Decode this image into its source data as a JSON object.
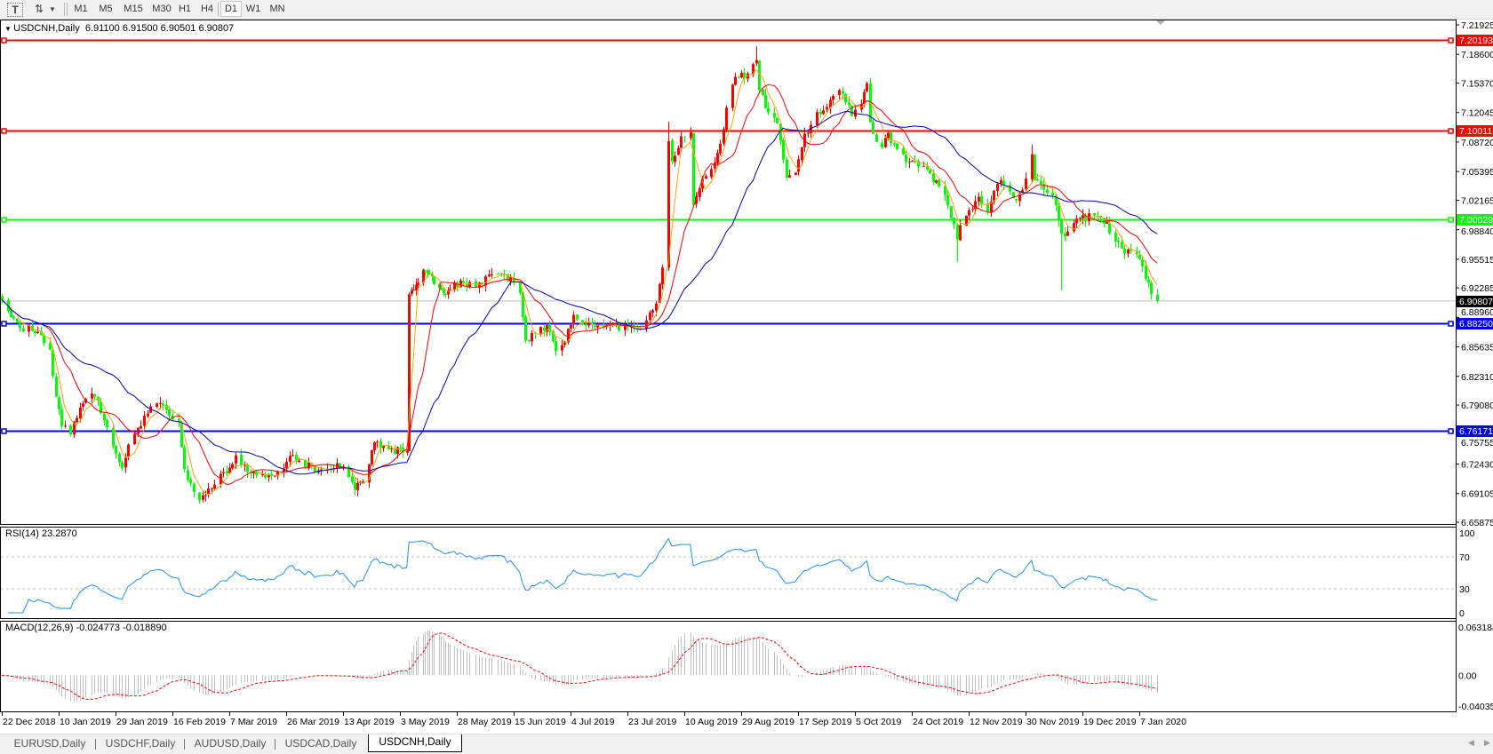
{
  "toolbar": {
    "text_tool_icon": "text-label-icon",
    "arrows_tool_icon": "arrows-icon",
    "timeframes": [
      "M1",
      "M5",
      "M15",
      "M30",
      "H1",
      "H4",
      "D1",
      "W1",
      "MN"
    ],
    "active_timeframe": "D1"
  },
  "header": {
    "symbol": "USDCNH,Daily",
    "ohlc": "6.91100 6.91500 6.90501 6.90807"
  },
  "price_axis": {
    "ticks": [
      "7.21925",
      "7.18600",
      "7.15370",
      "7.12045",
      "7.08720",
      "7.05395",
      "7.02165",
      "6.98840",
      "6.95515",
      "6.92285",
      "6.88960",
      "6.85635",
      "6.82310",
      "6.79080",
      "6.75755",
      "6.72430",
      "6.69105",
      "6.65875"
    ],
    "current_price": "6.90807"
  },
  "levels": [
    {
      "price": "7.20193",
      "color": "#ff0000"
    },
    {
      "price": "7.10011",
      "color": "#ff0000"
    },
    {
      "price": "7.00029",
      "color": "#00ff00"
    },
    {
      "price": "6.88250",
      "color": "#0000ff"
    },
    {
      "price": "6.76171",
      "color": "#0000ff"
    }
  ],
  "rsi": {
    "label": "RSI(14) 23.2870",
    "scale": [
      "100",
      "70",
      "30",
      "0"
    ],
    "color": "#1e90ff"
  },
  "macd": {
    "label": "MACD(12,26,9) -0.024773 -0.018890",
    "scale": [
      "0.063184",
      "0.00",
      "-0.040355"
    ],
    "histogram_color": "#c0c0c0",
    "signal_color": "#ff0000"
  },
  "date_axis": [
    "22 Dec 2018",
    "10 Jan 2019",
    "29 Jan 2019",
    "16 Feb 2019",
    "7 Mar 2019",
    "26 Mar 2019",
    "13 Apr 2019",
    "3 May 2019",
    "28 May 2019",
    "15 Jun 2019",
    "4 Jul 2019",
    "23 Jul 2019",
    "10 Aug 2019",
    "29 Aug 2019",
    "17 Sep 2019",
    "5 Oct 2019",
    "24 Oct 2019",
    "12 Nov 2019",
    "30 Nov 2019",
    "19 Dec 2019",
    "7 Jan 2020"
  ],
  "tabs": [
    "EURUSD,Daily",
    "USDCHF,Daily",
    "AUDUSD,Daily",
    "USDCAD,Daily",
    "USDCNH,Daily"
  ],
  "active_tab": "USDCNH,Daily",
  "chart_data": {
    "type": "candlestick",
    "symbol": "USDCNH",
    "timeframe": "Daily",
    "up_color": "#ff0000",
    "down_color": "#00ff00",
    "ylim": [
      6.65875,
      7.21925
    ],
    "moving_averages": [
      {
        "period": 5,
        "color": "#ffa500"
      },
      {
        "period": 13,
        "color": "#ff0000"
      },
      {
        "period": 34,
        "color": "#0000c8"
      }
    ],
    "close_path": [
      [
        "2018-12-22",
        6.914
      ],
      [
        "2018-12-27",
        6.88
      ],
      [
        "2019-01-02",
        6.875
      ],
      [
        "2019-01-07",
        6.85
      ],
      [
        "2019-01-09",
        6.797
      ],
      [
        "2019-01-11",
        6.767
      ],
      [
        "2019-01-14",
        6.762
      ],
      [
        "2019-01-17",
        6.787
      ],
      [
        "2019-01-22",
        6.804
      ],
      [
        "2019-01-25",
        6.774
      ],
      [
        "2019-01-31",
        6.72
      ],
      [
        "2019-02-02",
        6.747
      ],
      [
        "2019-02-07",
        6.777
      ],
      [
        "2019-02-11",
        6.794
      ],
      [
        "2019-02-16",
        6.779
      ],
      [
        "2019-02-18",
        6.77
      ],
      [
        "2019-02-20",
        6.717
      ],
      [
        "2019-02-24",
        6.684
      ],
      [
        "2019-03-01",
        6.7
      ],
      [
        "2019-03-05",
        6.714
      ],
      [
        "2019-03-09",
        6.73
      ],
      [
        "2019-03-13",
        6.717
      ],
      [
        "2019-03-21",
        6.707
      ],
      [
        "2019-03-28",
        6.734
      ],
      [
        "2019-04-04",
        6.717
      ],
      [
        "2019-04-12",
        6.724
      ],
      [
        "2019-04-17",
        6.694
      ],
      [
        "2019-04-21",
        6.714
      ],
      [
        "2019-04-24",
        6.747
      ],
      [
        "2019-05-01",
        6.74
      ],
      [
        "2019-05-06",
        6.74
      ],
      [
        "2019-05-07",
        6.912
      ],
      [
        "2019-05-13",
        6.94
      ],
      [
        "2019-05-17",
        6.934
      ],
      [
        "2019-05-22",
        6.917
      ],
      [
        "2019-05-27",
        6.927
      ],
      [
        "2019-06-03",
        6.927
      ],
      [
        "2019-06-09",
        6.937
      ],
      [
        "2019-06-14",
        6.932
      ],
      [
        "2019-06-17",
        6.917
      ],
      [
        "2019-06-19",
        6.864
      ],
      [
        "2019-06-22",
        6.87
      ],
      [
        "2019-06-26",
        6.88
      ],
      [
        "2019-06-30",
        6.847
      ],
      [
        "2019-07-05",
        6.89
      ],
      [
        "2019-07-09",
        6.884
      ],
      [
        "2019-07-15",
        6.877
      ],
      [
        "2019-07-21",
        6.88
      ],
      [
        "2019-07-26",
        6.877
      ],
      [
        "2019-07-29",
        6.887
      ],
      [
        "2019-08-01",
        6.904
      ],
      [
        "2019-08-04",
        6.967
      ],
      [
        "2019-08-05",
        7.084
      ],
      [
        "2019-08-06",
        7.064
      ],
      [
        "2019-08-09",
        7.09
      ],
      [
        "2019-08-12",
        7.097
      ],
      [
        "2019-08-13",
        7.017
      ],
      [
        "2019-08-16",
        7.047
      ],
      [
        "2019-08-19",
        7.06
      ],
      [
        "2019-08-22",
        7.084
      ],
      [
        "2019-08-25",
        7.15
      ],
      [
        "2019-08-28",
        7.164
      ],
      [
        "2019-08-31",
        7.16
      ],
      [
        "2019-09-03",
        7.184
      ],
      [
        "2019-09-04",
        7.147
      ],
      [
        "2019-09-07",
        7.117
      ],
      [
        "2019-09-10",
        7.11
      ],
      [
        "2019-09-13",
        7.044
      ],
      [
        "2019-09-16",
        7.057
      ],
      [
        "2019-09-19",
        7.094
      ],
      [
        "2019-09-22",
        7.114
      ],
      [
        "2019-09-26",
        7.13
      ],
      [
        "2019-10-01",
        7.145
      ],
      [
        "2019-10-04",
        7.117
      ],
      [
        "2019-10-06",
        7.127
      ],
      [
        "2019-10-09",
        7.15
      ],
      [
        "2019-10-10",
        7.107
      ],
      [
        "2019-10-13",
        7.077
      ],
      [
        "2019-10-16",
        7.097
      ],
      [
        "2019-10-19",
        7.077
      ],
      [
        "2019-10-24",
        7.064
      ],
      [
        "2019-10-28",
        7.057
      ],
      [
        "2019-11-02",
        7.037
      ],
      [
        "2019-11-05",
        7.017
      ],
      [
        "2019-11-08",
        6.977
      ],
      [
        "2019-11-09",
        6.99
      ],
      [
        "2019-11-12",
        7.01
      ],
      [
        "2019-11-15",
        7.024
      ],
      [
        "2019-11-18",
        7.01
      ],
      [
        "2019-11-21",
        7.04
      ],
      [
        "2019-11-24",
        7.042
      ],
      [
        "2019-11-27",
        7.02
      ],
      [
        "2019-11-29",
        7.03
      ],
      [
        "2019-12-02",
        7.074
      ],
      [
        "2019-12-03",
        7.044
      ],
      [
        "2019-12-06",
        7.034
      ],
      [
        "2019-12-09",
        7.03
      ],
      [
        "2019-12-12",
        6.98
      ],
      [
        "2019-12-15",
        6.994
      ],
      [
        "2019-12-18",
        7.0
      ],
      [
        "2019-12-23",
        7.004
      ],
      [
        "2019-12-27",
        6.994
      ],
      [
        "2019-12-30",
        6.977
      ],
      [
        "2020-01-02",
        6.964
      ],
      [
        "2020-01-05",
        6.967
      ],
      [
        "2020-01-08",
        6.944
      ],
      [
        "2020-01-11",
        6.917
      ],
      [
        "2020-01-13",
        6.90807
      ]
    ],
    "wick_extremes": [
      {
        "date": "2019-05-07",
        "low": 6.865
      },
      {
        "date": "2019-06-30",
        "low": 6.834
      },
      {
        "date": "2019-08-05",
        "high": 7.11
      },
      {
        "date": "2019-09-03",
        "high": 7.195
      },
      {
        "date": "2019-11-08",
        "low": 6.952
      },
      {
        "date": "2019-12-02",
        "high": 7.084
      },
      {
        "date": "2019-12-12",
        "low": 6.92
      }
    ]
  }
}
